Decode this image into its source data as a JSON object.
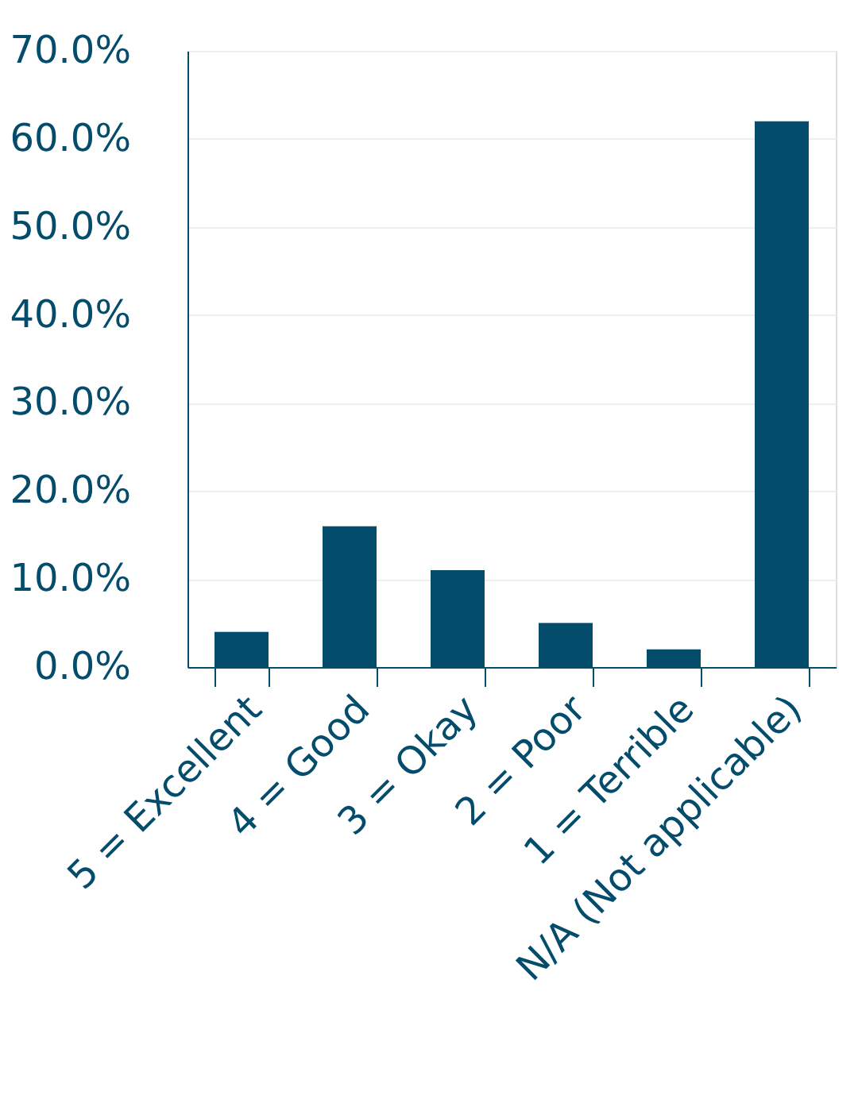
{
  "chart_data": {
    "type": "bar",
    "categories": [
      "5 = Excellent",
      "4 = Good",
      "3 = Okay",
      "2 = Poor",
      "1 = Terrible",
      "N/A (Not applicable)"
    ],
    "values": [
      4,
      16,
      11,
      5,
      2,
      62
    ],
    "color": "#044c6c",
    "ylim": [
      0,
      70
    ],
    "yticks": [
      {
        "value": 0,
        "label": "0.0%"
      },
      {
        "value": 10,
        "label": "10.0%"
      },
      {
        "value": 20,
        "label": "20.0%"
      },
      {
        "value": 30,
        "label": "30.0%"
      },
      {
        "value": 40,
        "label": "40.0%"
      },
      {
        "value": 50,
        "label": "50.0%"
      },
      {
        "value": 60,
        "label": "60.0%"
      },
      {
        "value": 70,
        "label": "70.0%"
      }
    ],
    "grid": "y"
  }
}
